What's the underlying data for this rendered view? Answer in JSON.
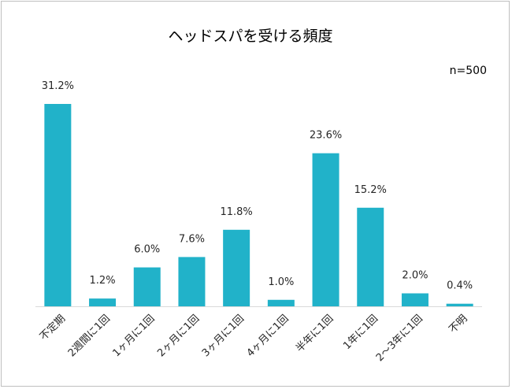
{
  "chart_data": {
    "type": "bar",
    "title": "ヘッドスパを受ける頻度",
    "note": "n=500",
    "categories": [
      "不定期",
      "2週間に1回",
      "1ヶ月に1回",
      "2ヶ月に1回",
      "3ヶ月に1回",
      "4ヶ月に1回",
      "半年に1回",
      "1年に1回",
      "2～3年に1回",
      "不明"
    ],
    "values": [
      31.2,
      1.2,
      6.0,
      7.6,
      11.8,
      1.0,
      23.6,
      15.2,
      2.0,
      0.4
    ],
    "value_labels": [
      "31.2%",
      "1.2%",
      "6.0%",
      "7.6%",
      "11.8%",
      "1.0%",
      "23.6%",
      "15.2%",
      "2.0%",
      "0.4%"
    ],
    "xlabel": "",
    "ylabel": "",
    "ylim": [
      0,
      31.2
    ],
    "grid": false,
    "legend": "none",
    "bar_color": "#21b2c9"
  }
}
